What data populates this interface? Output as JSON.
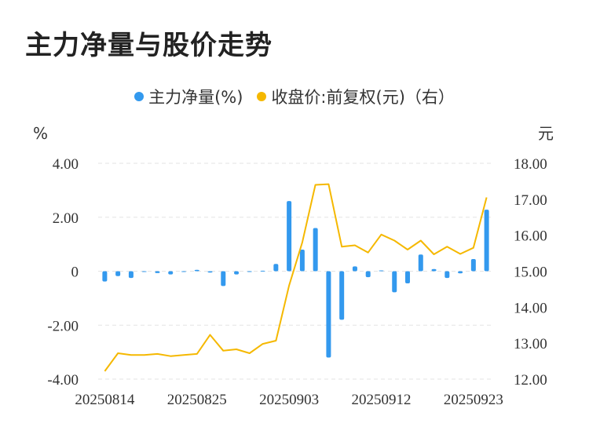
{
  "chart_data": {
    "type": "bar+line",
    "title": "主力净量与股价走势",
    "legend_position": "top-center",
    "left_unit": "%",
    "right_unit": "元",
    "x_tick_labels": [
      "20250814",
      "20250825",
      "20250903",
      "20250912",
      "20250923"
    ],
    "x": [
      "20250814",
      "20250815",
      "20250818",
      "20250819",
      "20250820",
      "20250821",
      "20250822",
      "20250825",
      "20250826",
      "20250827",
      "20250828",
      "20250829",
      "20250901",
      "20250902",
      "20250903",
      "20250904",
      "20250905",
      "20250908",
      "20250909",
      "20250910",
      "20250911",
      "20250912",
      "20250915",
      "20250916",
      "20250917",
      "20250918",
      "20250919",
      "20250922",
      "20250923",
      "20250924"
    ],
    "y_left_ticks": [
      "4.00",
      "2.00",
      "0",
      "-2.00",
      "-4.00"
    ],
    "y_left_range": [
      -4,
      4
    ],
    "y_right_ticks": [
      "18.00",
      "17.00",
      "16.00",
      "15.00",
      "14.00",
      "13.00",
      "12.00"
    ],
    "y_right_range": [
      12,
      18
    ],
    "series": [
      {
        "name": "主力净量(%)",
        "kind": "bar",
        "axis": "left",
        "color": "#3399ee",
        "values": [
          -0.38,
          -0.18,
          -0.25,
          -0.02,
          -0.07,
          -0.12,
          -0.02,
          0.05,
          -0.05,
          -0.55,
          -0.12,
          0.0,
          0.02,
          0.27,
          2.6,
          0.8,
          1.6,
          -3.2,
          -1.8,
          0.18,
          -0.22,
          0.03,
          -0.78,
          -0.45,
          0.62,
          0.08,
          -0.25,
          -0.08,
          0.45,
          2.28
        ]
      },
      {
        "name": "收盘价:前复权(元)（右）",
        "kind": "line",
        "axis": "right",
        "color": "#f5b800",
        "values": [
          12.22,
          12.72,
          12.67,
          12.67,
          12.7,
          12.64,
          12.67,
          12.7,
          13.23,
          12.79,
          12.83,
          12.72,
          12.98,
          13.07,
          14.6,
          15.8,
          17.4,
          17.42,
          15.68,
          15.72,
          15.52,
          16.02,
          15.85,
          15.6,
          15.85,
          15.47,
          15.68,
          15.48,
          15.65,
          17.05
        ]
      }
    ],
    "grid": "horizontal-dashed"
  }
}
